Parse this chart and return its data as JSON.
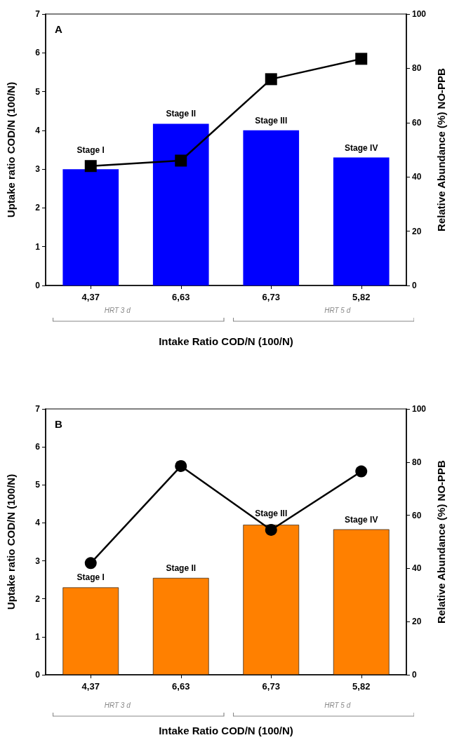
{
  "chart_data": [
    {
      "type": "bar",
      "title": "A",
      "categories": [
        "4,37",
        "6,63",
        "6,73",
        "5,82"
      ],
      "xlabel": "Intake Ratio COD/N (100/N)",
      "ylabel": "Uptake ratio COD/N (100/N)",
      "y2label": "Relative Abundance (%) NO-PPB",
      "ylim": [
        0,
        7
      ],
      "yticks": [
        0,
        1,
        2,
        3,
        4,
        5,
        6,
        7
      ],
      "y2lim": [
        0,
        100
      ],
      "y2ticks": [
        0,
        20,
        40,
        60,
        80,
        100
      ],
      "grid": false,
      "series": [
        {
          "color": "#0000ff",
          "values": [
            3.0,
            4.17,
            4.0,
            3.3
          ]
        },
        {
          "type": "line",
          "axis": "y2",
          "color": "#000000",
          "marker": "square",
          "line_style": "solid",
          "values": [
            44,
            46,
            76,
            83.5
          ]
        }
      ],
      "annotations": [
        {
          "text": "Stage I",
          "x": "4,37",
          "y": 3.0
        },
        {
          "text": "Stage II",
          "x": "6,63",
          "y": 4.17
        },
        {
          "text": "Stage III",
          "x": "6,73",
          "y": 4.0
        },
        {
          "text": "Stage IV",
          "x": "5,82",
          "y": 3.3
        },
        "HRT 3 d",
        "HRT 5 d"
      ]
    },
    {
      "type": "bar",
      "title": "B",
      "categories": [
        "4,37",
        "6,63",
        "6,73",
        "5,82"
      ],
      "xlabel": "Intake Ratio COD/N (100/N)",
      "ylabel": "Uptake ratio COD/N (100/N)",
      "y2label": "Relative Abundance (%) NO-PPB",
      "ylim": [
        0,
        7
      ],
      "yticks": [
        0,
        1,
        2,
        3,
        4,
        5,
        6,
        7
      ],
      "y2lim": [
        0,
        100
      ],
      "y2ticks": [
        0,
        20,
        40,
        60,
        80,
        100
      ],
      "grid": false,
      "series": [
        {
          "color": "#ff8000",
          "values": [
            2.3,
            2.55,
            3.95,
            3.83
          ]
        },
        {
          "type": "line",
          "axis": "y2",
          "color": "#000000",
          "marker": "circle",
          "line_style": "solid",
          "values": [
            42,
            78.5,
            54.5,
            76.5
          ]
        }
      ],
      "annotations": [
        {
          "text": "Stage I",
          "x": "4,37",
          "y": 2.3
        },
        {
          "text": "Stage II",
          "x": "6,63",
          "y": 2.55
        },
        {
          "text": "Stage III",
          "x": "6,73",
          "y": 3.95
        },
        {
          "text": "Stage IV",
          "x": "5,82",
          "y": 3.83
        },
        "HRT 3 d",
        "HRT 5 d"
      ]
    }
  ]
}
